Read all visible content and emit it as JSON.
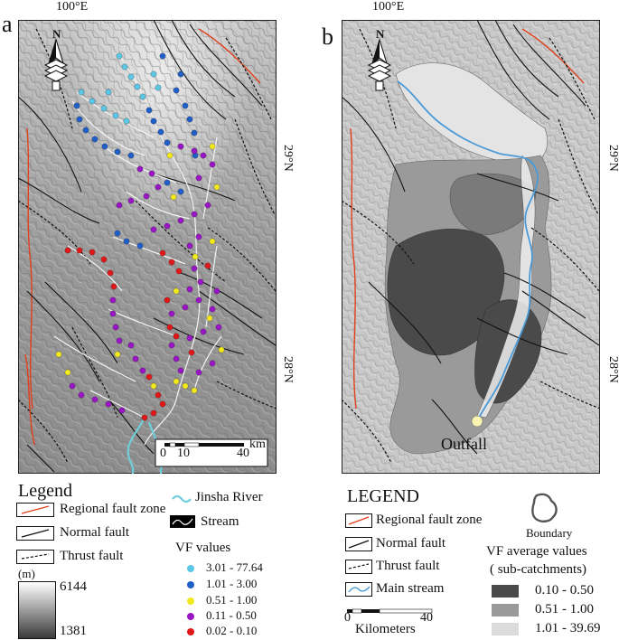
{
  "panel_a": {
    "label": "a",
    "lon_label": "100°E",
    "lat_labels": [
      "29°N",
      "28°N"
    ],
    "scale": {
      "ticks": [
        "0",
        "10",
        "40"
      ],
      "unit": "km"
    }
  },
  "panel_b": {
    "label": "b",
    "lon_label": "100°E",
    "lat_labels": [
      "29°N",
      "28°N"
    ],
    "outfall_label": "Outfall"
  },
  "legend_a": {
    "title": "Legend",
    "regional_fault": "Regional fault zone",
    "normal_fault": "Normal fault",
    "thrust_fault": "Thrust fault",
    "elev_unit": "(m)",
    "elev_max": "6144",
    "elev_min": "1381",
    "jinsha": "Jinsha River",
    "stream": "Stream",
    "vf_title": "VF values",
    "vf_classes": [
      {
        "label": "3.01 - 77.64",
        "color": "#5bc8e8"
      },
      {
        "label": "1.01 - 3.00",
        "color": "#1f5fc8"
      },
      {
        "label": "0.51 - 1.00",
        "color": "#f2ea1c"
      },
      {
        "label": "0.11 - 0.50",
        "color": "#9a16c4"
      },
      {
        "label": "0.02 - 0.10",
        "color": "#e01818"
      }
    ]
  },
  "legend_b": {
    "title": "LEGEND",
    "regional_fault": "Regional fault zone",
    "normal_fault": "Normal fault",
    "thrust_fault": "Thrust fault",
    "main_stream": "Main stream",
    "scale_ticks": [
      "0",
      "40"
    ],
    "scale_unit": "Kilometers",
    "boundary": "Boundary",
    "vf_avg_title": "VF average values",
    "vf_avg_sub": "( sub-catchments)",
    "vf_avg_classes": [
      {
        "label": "0.10 - 0.50",
        "color": "#4a4a4a"
      },
      {
        "label": "0.51 - 1.00",
        "color": "#9a9a9a"
      },
      {
        "label": "1.01 - 39.69",
        "color": "#dcdcdc"
      }
    ]
  },
  "colors": {
    "regional_fault": "#e0401c",
    "jinsha": "#6fd0dc",
    "main_stream": "#4a9ad8"
  }
}
